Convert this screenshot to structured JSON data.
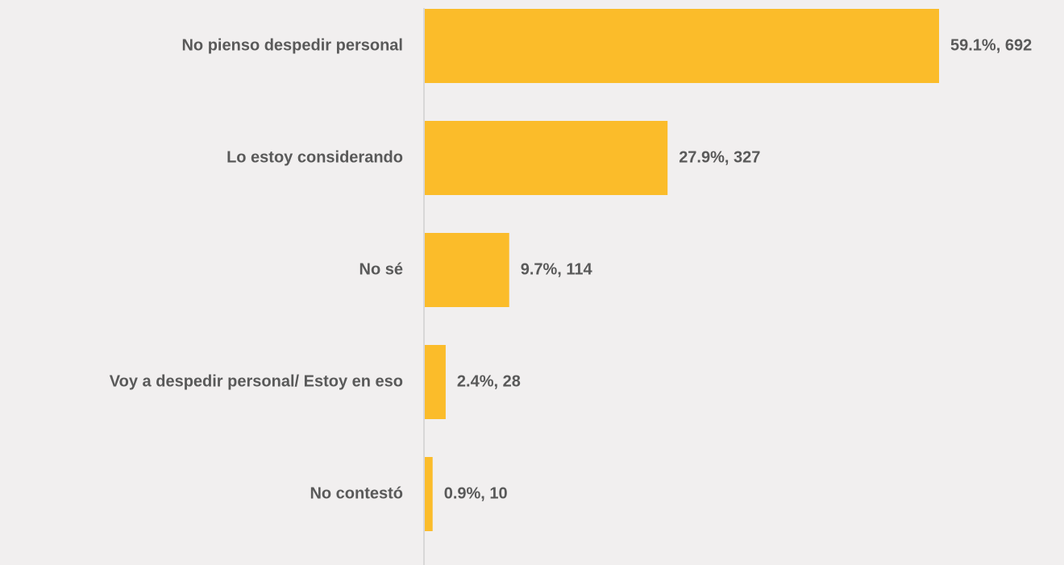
{
  "chart_data": {
    "type": "bar",
    "orientation": "horizontal",
    "categories": [
      "No pienso despedir personal",
      "Lo estoy considerando",
      "No sé",
      "Voy a despedir personal/ Estoy en eso",
      "No contestó"
    ],
    "values": [
      59.1,
      27.9,
      9.7,
      2.4,
      0.9
    ],
    "value_labels": [
      "59.1%, 692",
      "27.9%, 327",
      "9.7%, 114",
      "2.4%, 28",
      "0.9%, 10"
    ],
    "color": "#fbbc2a"
  }
}
